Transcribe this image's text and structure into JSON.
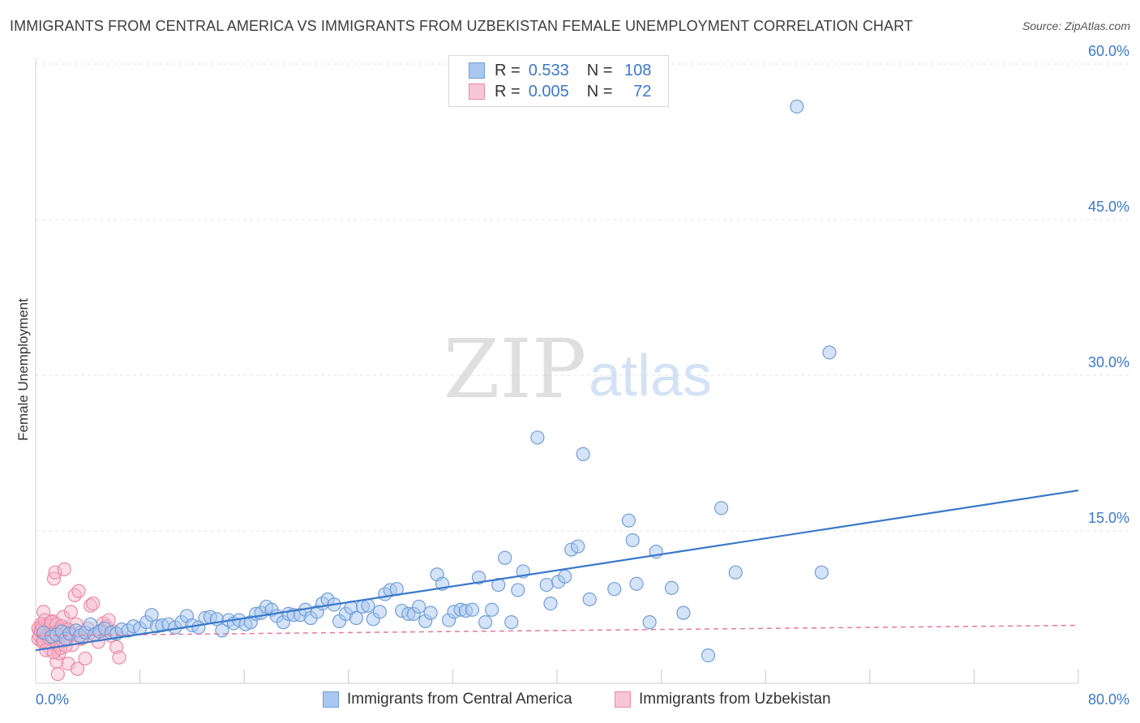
{
  "header": {
    "title": "IMMIGRANTS FROM CENTRAL AMERICA VS IMMIGRANTS FROM UZBEKISTAN FEMALE UNEMPLOYMENT CORRELATION CHART",
    "source": "Source: ZipAtlas.com"
  },
  "watermark": {
    "zip": "ZIP",
    "atlas": "atlas"
  },
  "legend": {
    "rows": [
      {
        "r_label": "R =",
        "r_value": "0.533",
        "n_label": "N =",
        "n_value": "108"
      },
      {
        "r_label": "R =",
        "r_value": "0.005",
        "n_label": "N =",
        "n_value": "72"
      }
    ]
  },
  "chart_data": {
    "type": "scatter",
    "title": "IMMIGRANTS FROM CENTRAL AMERICA VS IMMIGRANTS FROM UZBEKISTAN FEMALE UNEMPLOYMENT CORRELATION CHART",
    "xlabel": "",
    "ylabel": "Female Unemployment",
    "xlim": [
      0,
      80
    ],
    "ylim": [
      0,
      62
    ],
    "x_tick_labels": [
      "0.0%",
      "80.0%"
    ],
    "y_ticks": [
      15,
      30,
      45,
      60
    ],
    "y_tick_labels": [
      "15.0%",
      "30.0%",
      "45.0%",
      "60.0%"
    ],
    "colors": {
      "blue_fill": "#a9c8ef",
      "blue_stroke": "#6f9fd8",
      "blue_line": "#3a78c9",
      "pink_fill": "#f7b6c9",
      "pink_stroke": "#e98aa7",
      "pink_line": "#e4799c",
      "tick_label": "#3a78c9",
      "grid": "#e3e3e3"
    },
    "series": [
      {
        "name": "Immigrants from Central America",
        "trend": {
          "x0": 0,
          "y0": 3.5,
          "x1": 80,
          "y1": 18.9
        },
        "points": [
          [
            0.6,
            5.2
          ],
          [
            1.2,
            4.8
          ],
          [
            1.6,
            5.0
          ],
          [
            2.0,
            5.3
          ],
          [
            2.3,
            4.6
          ],
          [
            2.6,
            5.1
          ],
          [
            3.1,
            5.4
          ],
          [
            3.4,
            4.9
          ],
          [
            3.8,
            5.2
          ],
          [
            4.2,
            6.0
          ],
          [
            4.5,
            5.0
          ],
          [
            4.9,
            5.3
          ],
          [
            5.3,
            5.6
          ],
          [
            5.8,
            5.2
          ],
          [
            6.2,
            5.1
          ],
          [
            6.6,
            5.5
          ],
          [
            7.1,
            5.4
          ],
          [
            7.5,
            5.8
          ],
          [
            8.0,
            5.6
          ],
          [
            8.5,
            6.2
          ],
          [
            8.9,
            6.9
          ],
          [
            9.3,
            5.8
          ],
          [
            9.7,
            5.9
          ],
          [
            10.2,
            6.0
          ],
          [
            10.7,
            5.7
          ],
          [
            11.2,
            6.2
          ],
          [
            11.6,
            6.8
          ],
          [
            12.0,
            5.9
          ],
          [
            12.5,
            5.7
          ],
          [
            13.0,
            6.6
          ],
          [
            13.4,
            6.7
          ],
          [
            13.9,
            6.5
          ],
          [
            14.3,
            5.4
          ],
          [
            14.8,
            6.4
          ],
          [
            15.2,
            6.1
          ],
          [
            15.6,
            6.4
          ],
          [
            16.1,
            6.0
          ],
          [
            16.5,
            6.2
          ],
          [
            16.9,
            7.0
          ],
          [
            17.3,
            7.1
          ],
          [
            17.7,
            7.7
          ],
          [
            18.1,
            7.4
          ],
          [
            18.5,
            6.8
          ],
          [
            19.0,
            6.2
          ],
          [
            19.4,
            7.0
          ],
          [
            19.8,
            6.9
          ],
          [
            20.3,
            6.9
          ],
          [
            20.7,
            7.4
          ],
          [
            21.1,
            6.6
          ],
          [
            21.6,
            7.2
          ],
          [
            22.0,
            8.0
          ],
          [
            22.4,
            8.4
          ],
          [
            22.9,
            7.9
          ],
          [
            23.3,
            6.3
          ],
          [
            23.8,
            7.0
          ],
          [
            24.2,
            7.6
          ],
          [
            24.6,
            6.6
          ],
          [
            25.1,
            7.7
          ],
          [
            25.5,
            7.8
          ],
          [
            25.9,
            6.5
          ],
          [
            26.4,
            7.2
          ],
          [
            26.8,
            8.9
          ],
          [
            27.2,
            9.3
          ],
          [
            27.7,
            9.4
          ],
          [
            28.1,
            7.3
          ],
          [
            28.6,
            7.0
          ],
          [
            29.0,
            7.0
          ],
          [
            29.4,
            7.7
          ],
          [
            29.9,
            6.3
          ],
          [
            30.3,
            7.1
          ],
          [
            30.8,
            10.8
          ],
          [
            31.2,
            9.9
          ],
          [
            31.7,
            6.4
          ],
          [
            32.1,
            7.2
          ],
          [
            32.6,
            7.4
          ],
          [
            33.0,
            7.3
          ],
          [
            33.5,
            7.4
          ],
          [
            34.0,
            10.5
          ],
          [
            34.5,
            6.2
          ],
          [
            35.0,
            7.4
          ],
          [
            35.5,
            9.8
          ],
          [
            36.0,
            12.4
          ],
          [
            36.5,
            6.2
          ],
          [
            37.0,
            9.3
          ],
          [
            37.4,
            11.1
          ],
          [
            38.5,
            24.0
          ],
          [
            39.2,
            9.8
          ],
          [
            39.5,
            8.0
          ],
          [
            40.1,
            10.1
          ],
          [
            40.6,
            10.6
          ],
          [
            41.1,
            13.2
          ],
          [
            41.6,
            13.5
          ],
          [
            42.0,
            22.4
          ],
          [
            42.5,
            8.4
          ],
          [
            44.4,
            9.4
          ],
          [
            45.5,
            16.0
          ],
          [
            45.8,
            14.1
          ],
          [
            46.1,
            9.9
          ],
          [
            47.1,
            6.2
          ],
          [
            47.6,
            13.0
          ],
          [
            48.8,
            9.5
          ],
          [
            49.7,
            7.1
          ],
          [
            51.6,
            3.0
          ],
          [
            52.6,
            17.2
          ],
          [
            53.7,
            11.0
          ],
          [
            58.4,
            55.9
          ],
          [
            60.3,
            11.0
          ],
          [
            60.9,
            32.2
          ]
        ]
      },
      {
        "name": "Immigrants from Uzbekistan",
        "trend": {
          "x0": 0,
          "y0": 4.9,
          "x1": 80,
          "y1": 5.9
        },
        "points": [
          [
            0.2,
            4.6
          ],
          [
            0.3,
            5.4
          ],
          [
            0.4,
            6.0
          ],
          [
            0.5,
            4.3
          ],
          [
            0.6,
            7.2
          ],
          [
            0.7,
            5.0
          ],
          [
            0.8,
            4.9
          ],
          [
            0.9,
            5.9
          ],
          [
            1.0,
            5.5
          ],
          [
            1.1,
            3.6
          ],
          [
            1.2,
            4.1
          ],
          [
            1.3,
            6.3
          ],
          [
            1.4,
            10.4
          ],
          [
            1.5,
            11.0
          ],
          [
            1.6,
            2.4
          ],
          [
            1.7,
            1.2
          ],
          [
            1.8,
            3.2
          ],
          [
            1.9,
            5.6
          ],
          [
            2.0,
            4.9
          ],
          [
            2.1,
            6.7
          ],
          [
            2.2,
            11.3
          ],
          [
            2.3,
            5.1
          ],
          [
            2.4,
            4.5
          ],
          [
            2.5,
            2.2
          ],
          [
            2.6,
            5.3
          ],
          [
            2.7,
            7.2
          ],
          [
            2.8,
            4.0
          ],
          [
            3.0,
            8.8
          ],
          [
            3.1,
            6.0
          ],
          [
            3.2,
            1.7
          ],
          [
            3.3,
            9.2
          ],
          [
            3.4,
            5.2
          ],
          [
            3.6,
            4.7
          ],
          [
            3.8,
            2.7
          ],
          [
            4.0,
            5.6
          ],
          [
            4.2,
            7.8
          ],
          [
            4.4,
            8.0
          ],
          [
            4.6,
            5.1
          ],
          [
            4.8,
            4.3
          ],
          [
            5.0,
            5.4
          ],
          [
            5.2,
            6.1
          ],
          [
            5.4,
            5.8
          ],
          [
            5.6,
            6.4
          ],
          [
            5.8,
            4.9
          ],
          [
            6.0,
            5.3
          ],
          [
            6.2,
            3.8
          ],
          [
            6.4,
            2.8
          ],
          [
            0.2,
            5.6
          ],
          [
            0.3,
            4.9
          ],
          [
            0.4,
            5.3
          ],
          [
            0.5,
            5.8
          ],
          [
            0.6,
            4.4
          ],
          [
            0.7,
            6.4
          ],
          [
            0.8,
            3.5
          ],
          [
            0.9,
            5.0
          ],
          [
            1.0,
            4.7
          ],
          [
            1.1,
            5.9
          ],
          [
            1.2,
            6.2
          ],
          [
            1.3,
            4.8
          ],
          [
            1.4,
            3.3
          ],
          [
            1.5,
            5.2
          ],
          [
            1.6,
            6.0
          ],
          [
            1.7,
            4.0
          ],
          [
            1.8,
            5.4
          ],
          [
            1.9,
            3.7
          ],
          [
            2.0,
            5.8
          ],
          [
            2.1,
            4.4
          ],
          [
            2.2,
            5.1
          ],
          [
            2.3,
            3.9
          ],
          [
            2.5,
            5.5
          ],
          [
            2.8,
            5.0
          ],
          [
            3.5,
            4.6
          ]
        ]
      }
    ]
  },
  "axis_labels": {
    "x_left": "0.0%",
    "x_right": "80.0%",
    "y_title": "Female Unemployment"
  },
  "bottom_legend": {
    "items": [
      "Immigrants from Central America",
      "Immigrants from Uzbekistan"
    ]
  }
}
